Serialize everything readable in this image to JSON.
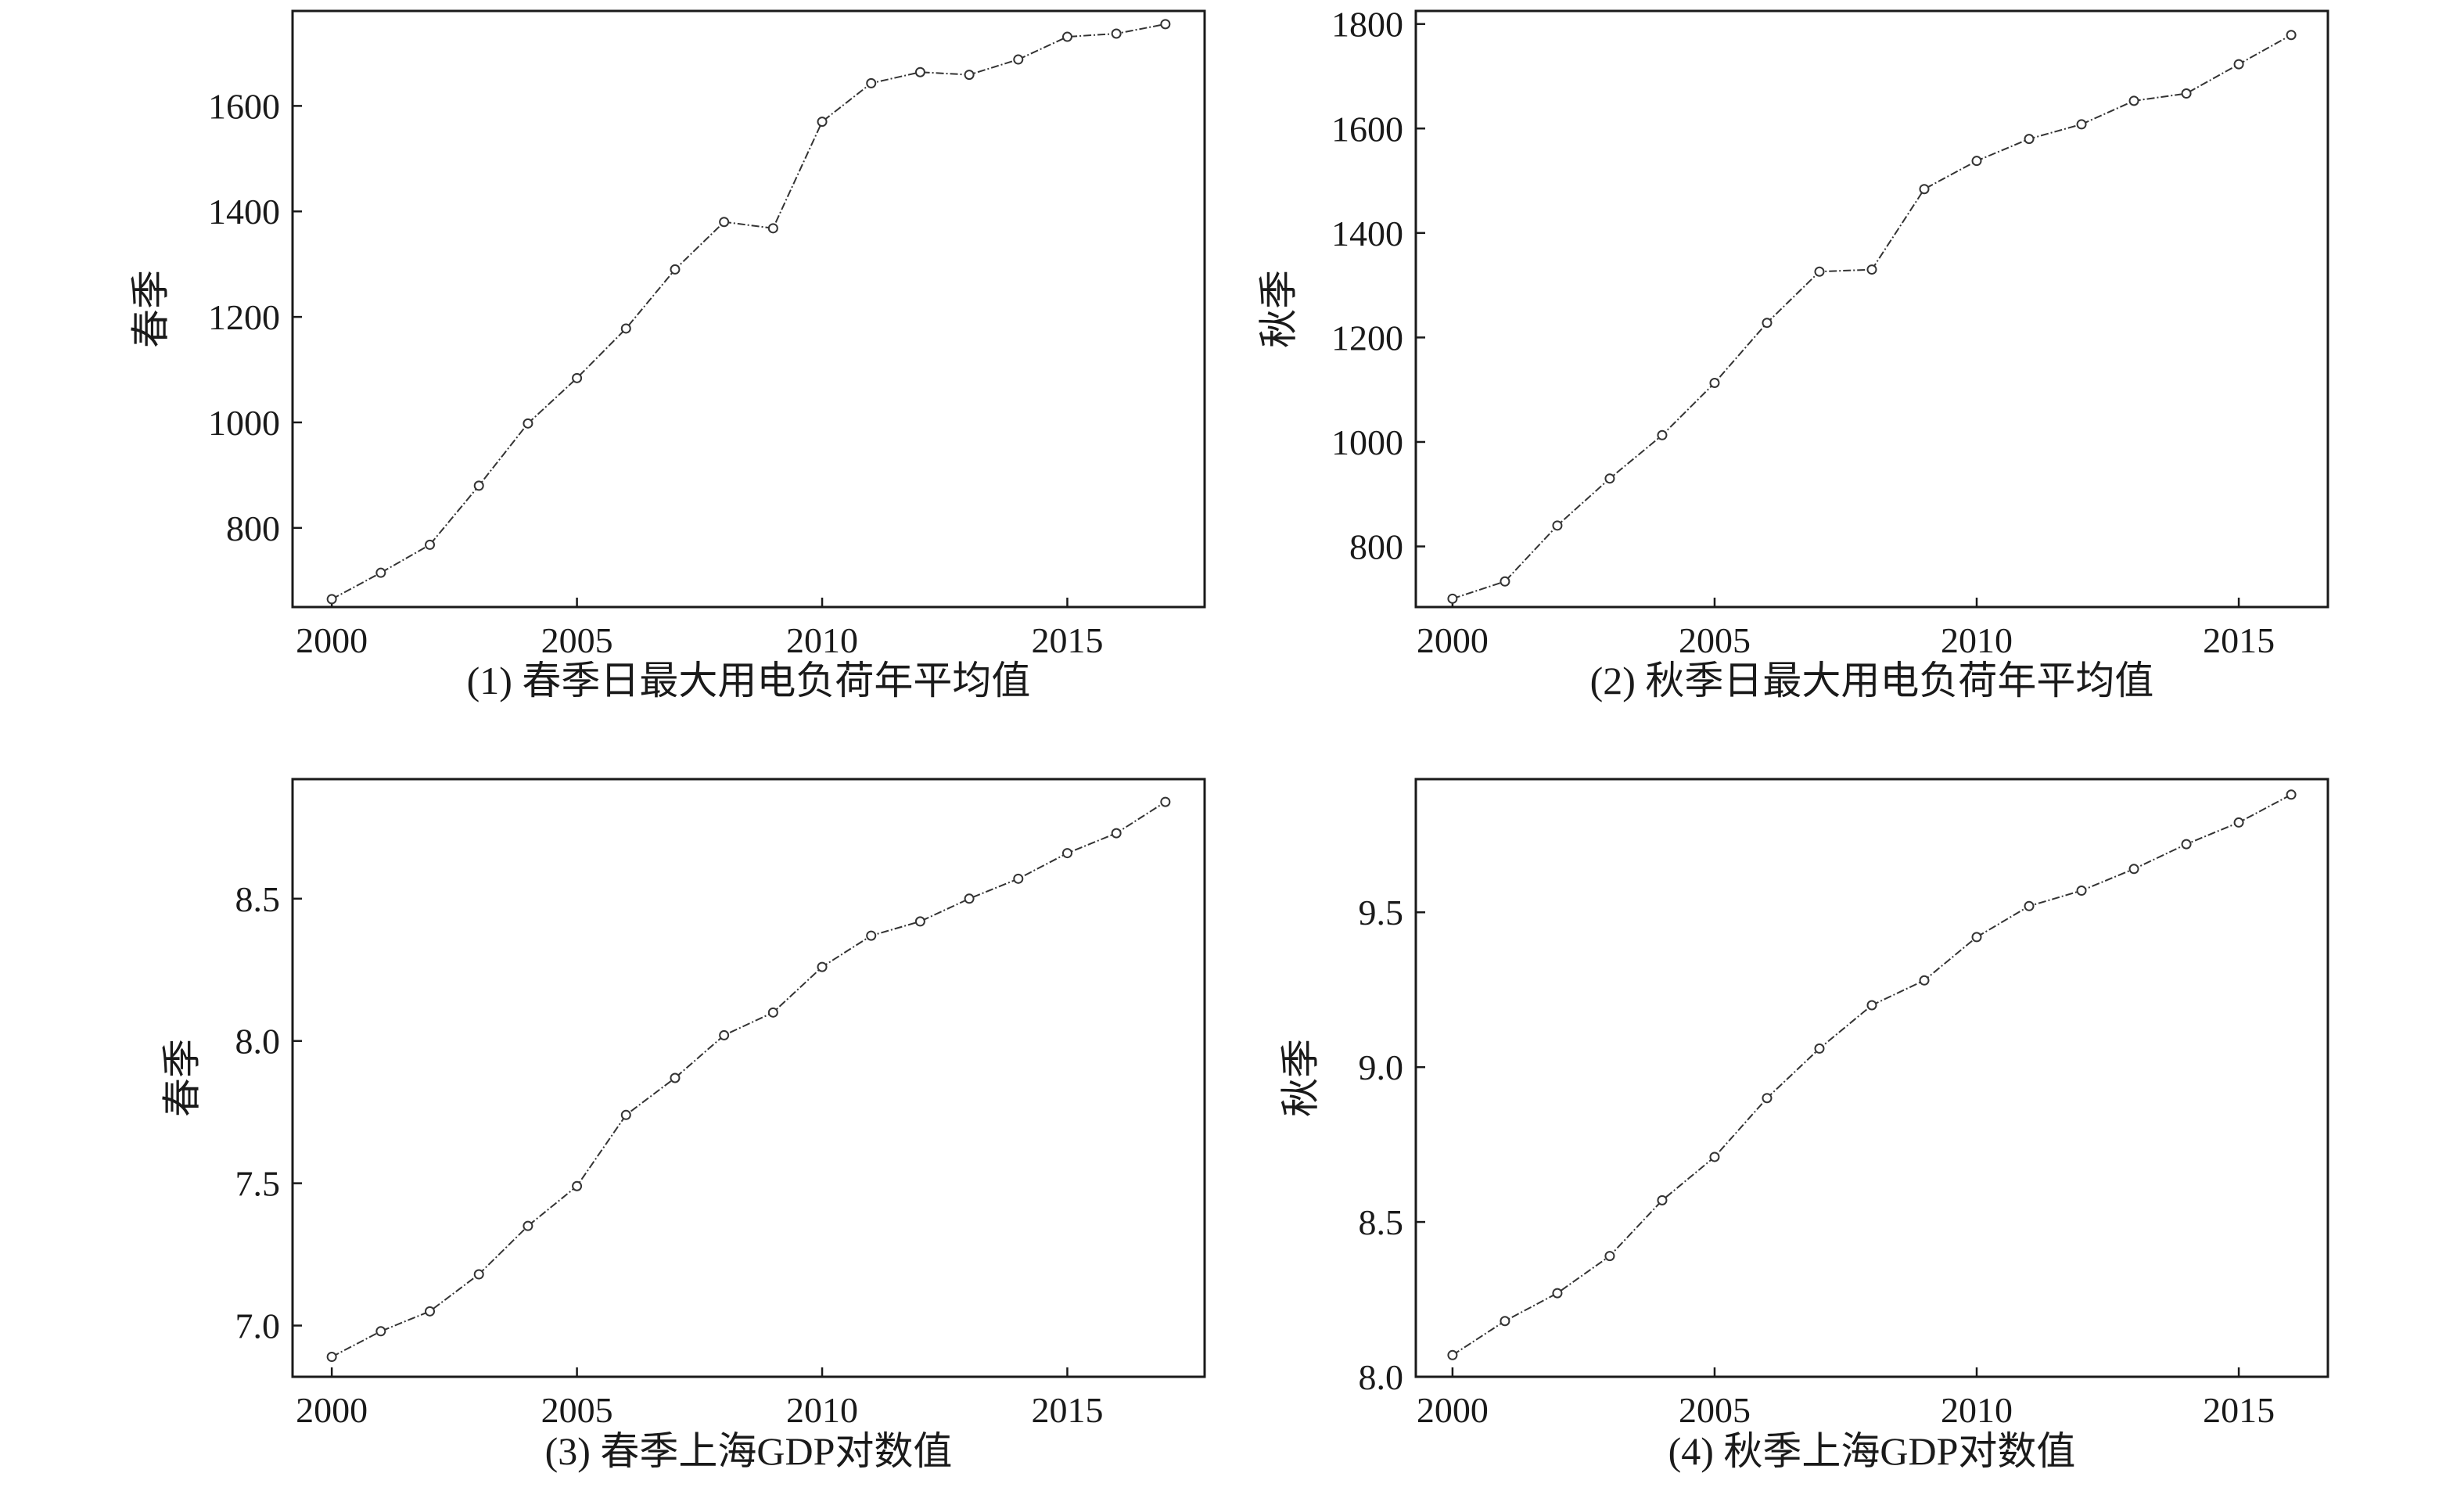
{
  "chart_data": [
    {
      "type": "line",
      "caption": "(1) 春季日最大用电负荷年平均值",
      "ylabel": "春季",
      "xlabel": "",
      "x": [
        2000,
        2001,
        2002,
        2003,
        2004,
        2005,
        2006,
        2007,
        2008,
        2009,
        2010,
        2011,
        2012,
        2013,
        2014,
        2015,
        2016,
        2017
      ],
      "y": [
        665,
        715,
        768,
        880,
        998,
        1084,
        1178,
        1290,
        1380,
        1368,
        1570,
        1643,
        1664,
        1659,
        1688,
        1731,
        1737,
        1755
      ],
      "xlim": [
        1999.2,
        2017.8
      ],
      "ylim": [
        650,
        1780
      ],
      "xticks": [
        2000,
        2005,
        2010,
        2015
      ],
      "yticks": [
        800,
        1000,
        1200,
        1400,
        1600
      ],
      "grid": false
    },
    {
      "type": "line",
      "caption": "(2) 秋季日最大用电负荷年平均值",
      "ylabel": "秋季",
      "xlabel": "",
      "x": [
        2000,
        2001,
        2002,
        2003,
        2004,
        2005,
        2006,
        2007,
        2008,
        2009,
        2010,
        2011,
        2012,
        2013,
        2014,
        2015,
        2016
      ],
      "y": [
        700,
        733,
        840,
        930,
        1013,
        1113,
        1228,
        1326,
        1330,
        1484,
        1538,
        1580,
        1608,
        1653,
        1667,
        1723,
        1779
      ],
      "xlim": [
        1999.3,
        2016.7
      ],
      "ylim": [
        684,
        1825
      ],
      "xticks": [
        2000,
        2005,
        2010,
        2015
      ],
      "yticks": [
        800,
        1000,
        1200,
        1400,
        1600,
        1800
      ],
      "grid": false
    },
    {
      "type": "line",
      "caption": "(3) 春季上海GDP对数值",
      "ylabel": "春季",
      "xlabel": "",
      "x": [
        2000,
        2001,
        2002,
        2003,
        2004,
        2005,
        2006,
        2007,
        2008,
        2009,
        2010,
        2011,
        2012,
        2013,
        2014,
        2015,
        2016,
        2017
      ],
      "y": [
        6.89,
        6.98,
        7.05,
        7.18,
        7.35,
        7.49,
        7.74,
        7.87,
        8.02,
        8.1,
        8.26,
        8.37,
        8.42,
        8.5,
        8.57,
        8.66,
        8.73,
        8.84
      ],
      "xlim": [
        1999.2,
        2017.8
      ],
      "ylim": [
        6.82,
        8.92
      ],
      "xticks": [
        2000,
        2005,
        2010,
        2015
      ],
      "yticks": [
        7.0,
        7.5,
        8.0,
        8.5
      ],
      "grid": false
    },
    {
      "type": "line",
      "caption": "(4) 秋季上海GDP对数值",
      "ylabel": "秋季",
      "xlabel": "",
      "x": [
        2000,
        2001,
        2002,
        2003,
        2004,
        2005,
        2006,
        2007,
        2008,
        2009,
        2010,
        2011,
        2012,
        2013,
        2014,
        2015,
        2016
      ],
      "y": [
        8.07,
        8.18,
        8.27,
        8.39,
        8.57,
        8.71,
        8.9,
        9.06,
        9.2,
        9.28,
        9.42,
        9.52,
        9.57,
        9.64,
        9.72,
        9.79,
        9.88
      ],
      "xlim": [
        1999.3,
        2016.7
      ],
      "ylim": [
        8.0,
        9.93
      ],
      "xticks": [
        2000,
        2005,
        2010,
        2015
      ],
      "yticks": [
        8.0,
        8.5,
        9.0,
        9.5
      ],
      "grid": false
    }
  ]
}
